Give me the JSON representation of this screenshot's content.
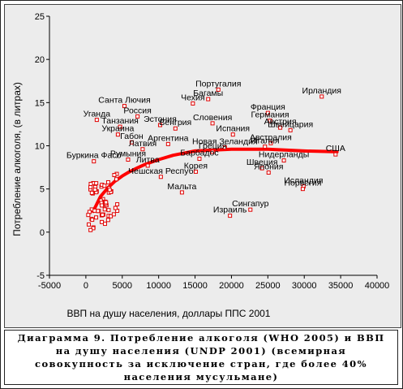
{
  "chart_data": {
    "type": "scatter",
    "title": "",
    "xlabel": "ВВП на душу населения, доллары ППС 2001",
    "ylabel": "Потребление алкоголя, (в литрах)",
    "xlim": [
      -5000,
      40000
    ],
    "ylim": [
      -5,
      25
    ],
    "xticks": [
      -5000,
      0,
      5000,
      10000,
      15000,
      20000,
      25000,
      30000,
      35000,
      40000
    ],
    "yticks": [
      -5,
      0,
      5,
      10,
      15,
      20,
      25
    ],
    "grid": false,
    "legend": "none",
    "colors": {
      "points": "#e00000",
      "trend": "#ff0000",
      "background": "#ececec"
    },
    "points": [
      {
        "label": "Ирландия",
        "x": 32400,
        "y": 15.7
      },
      {
        "label": "Португалия",
        "x": 18200,
        "y": 16.5
      },
      {
        "label": "Багамы",
        "x": 16800,
        "y": 15.4
      },
      {
        "label": "Чехия",
        "x": 14700,
        "y": 14.9
      },
      {
        "label": "Словения",
        "x": 17400,
        "y": 12.6
      },
      {
        "label": "Франция",
        "x": 25000,
        "y": 13.8
      },
      {
        "label": "Германия",
        "x": 25300,
        "y": 12.9
      },
      {
        "label": "Австрия",
        "x": 26700,
        "y": 12.1
      },
      {
        "label": "Швейцария",
        "x": 28100,
        "y": 11.8
      },
      {
        "label": "Испания",
        "x": 20200,
        "y": 11.3
      },
      {
        "label": "Австралия",
        "x": 25400,
        "y": 10.3
      },
      {
        "label": "Италия",
        "x": 24600,
        "y": 9.9
      },
      {
        "label": "Новая Зеландия",
        "x": 19100,
        "y": 9.8
      },
      {
        "label": "Греция",
        "x": 17400,
        "y": 9.3
      },
      {
        "label": "США",
        "x": 34300,
        "y": 9.0
      },
      {
        "label": "Барбадос",
        "x": 15600,
        "y": 8.5
      },
      {
        "label": "Корея",
        "x": 15100,
        "y": 7.0
      },
      {
        "label": "Нидерланды",
        "x": 27200,
        "y": 8.3
      },
      {
        "label": "Швеция",
        "x": 24200,
        "y": 7.4
      },
      {
        "label": "Япония",
        "x": 25100,
        "y": 6.9
      },
      {
        "label": "Исландия",
        "x": 29900,
        "y": 5.3
      },
      {
        "label": "Норвегия",
        "x": 29800,
        "y": 5.0
      },
      {
        "label": "Сингапур",
        "x": 22600,
        "y": 2.6
      },
      {
        "label": "Израиль",
        "x": 19800,
        "y": 1.9
      },
      {
        "label": "Мальта",
        "x": 13200,
        "y": 4.6
      },
      {
        "label": "Санта Лючия",
        "x": 5300,
        "y": 14.6
      },
      {
        "label": "Уганда",
        "x": 1500,
        "y": 13.0
      },
      {
        "label": "Танзания",
        "x": 4700,
        "y": 12.2
      },
      {
        "label": "Россия",
        "x": 7100,
        "y": 13.4
      },
      {
        "label": "Украина",
        "x": 4400,
        "y": 11.3
      },
      {
        "label": "Эстония",
        "x": 10200,
        "y": 12.4
      },
      {
        "label": "Венгрия",
        "x": 12300,
        "y": 12.0
      },
      {
        "label": "Габон",
        "x": 6300,
        "y": 10.4
      },
      {
        "label": "Аргентина",
        "x": 11300,
        "y": 10.2
      },
      {
        "label": "Латвия",
        "x": 7800,
        "y": 9.6
      },
      {
        "label": "Буркина Фасо",
        "x": 1100,
        "y": 8.2
      },
      {
        "label": "Румыния",
        "x": 5800,
        "y": 8.4
      },
      {
        "label": "Литва",
        "x": 8500,
        "y": 7.7
      },
      {
        "label": "Чешская Респуб",
        "x": 10300,
        "y": 6.4
      }
    ],
    "trend": {
      "name": "",
      "x": [
        1000,
        2000,
        3000,
        4000,
        5000,
        6000,
        7000,
        8000,
        10000,
        12000,
        15000,
        20000,
        25000,
        30000,
        34500
      ],
      "y": [
        2.4,
        4.1,
        5.1,
        5.9,
        6.5,
        7.0,
        7.4,
        7.8,
        8.4,
        8.9,
        9.4,
        9.6,
        9.6,
        9.4,
        9.3
      ]
    }
  },
  "caption": {
    "line1": "Диаграмма 9. Потребление алкоголя (WHO 2005) и ВВП",
    "line2": "на душу населения (UNDP 2001) (всемирная",
    "line3": "совокупность за исключение стран, где более 40%",
    "line4": "населения мусульмане)"
  }
}
